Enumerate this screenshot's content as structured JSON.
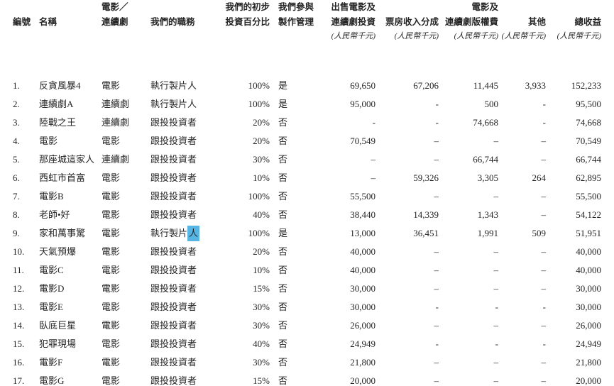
{
  "page": {
    "background_color": "#ffffff",
    "text_color": "#252525",
    "selection_highlight_color": "#56b5e2"
  },
  "table": {
    "unit_label": "(人民幣千元)",
    "columns": [
      {
        "key": "no",
        "lines": [
          "編號"
        ],
        "align": "left",
        "unit": false
      },
      {
        "key": "name",
        "lines": [
          "名稱"
        ],
        "align": "left",
        "unit": false
      },
      {
        "key": "type",
        "lines": [
          "電影／",
          "連續劇"
        ],
        "align": "left",
        "unit": false
      },
      {
        "key": "role",
        "lines": [
          "我們的職務"
        ],
        "align": "left",
        "unit": false
      },
      {
        "key": "pct",
        "lines": [
          "我們的初步",
          "投資百分比"
        ],
        "align": "right",
        "unit": false
      },
      {
        "key": "mgmt",
        "lines": [
          "我們參與",
          "製作管理"
        ],
        "align": "left",
        "unit": false
      },
      {
        "key": "invest",
        "lines": [
          "出售電影及",
          "連續劇投資"
        ],
        "align": "right",
        "unit": true
      },
      {
        "key": "boxoffice",
        "lines": [
          "票房收入分成"
        ],
        "align": "right",
        "unit": true
      },
      {
        "key": "royalty",
        "lines": [
          "電影及",
          "連續劇版權費"
        ],
        "align": "right",
        "unit": true
      },
      {
        "key": "other",
        "lines": [
          "其他"
        ],
        "align": "right",
        "unit": true
      },
      {
        "key": "total",
        "lines": [
          "總收益"
        ],
        "align": "right",
        "unit": true
      }
    ],
    "rows": [
      {
        "no": "1.",
        "name": "反貪風暴4",
        "type": "電影",
        "role": "執行製片人",
        "pct": "100%",
        "mgmt": "是",
        "invest": "69,650",
        "boxoffice": "67,206",
        "royalty": "11,445",
        "other": "3,933",
        "total": "152,233"
      },
      {
        "no": "2.",
        "name": "連續劇A",
        "type": "連續劇",
        "role": "執行製片人",
        "pct": "100%",
        "mgmt": "是",
        "invest": "95,000",
        "boxoffice": "-",
        "royalty": "500",
        "other": "-",
        "total": "95,500"
      },
      {
        "no": "3.",
        "name": "陸戰之王",
        "type": "連續劇",
        "role": "跟投投資者",
        "pct": "20%",
        "mgmt": "否",
        "invest": "-",
        "boxoffice": "-",
        "royalty": "74,668",
        "other": "-",
        "total": "74,668"
      },
      {
        "no": "4.",
        "name": "電影",
        "type": "電影",
        "role": "跟投投資者",
        "pct": "20%",
        "mgmt": "否",
        "invest": "70,549",
        "boxoffice": "–",
        "royalty": "–",
        "other": "–",
        "total": "70,549"
      },
      {
        "no": "5.",
        "name": "那座城這家人",
        "type": "連續劇",
        "role": "跟投投資者",
        "pct": "30%",
        "mgmt": "否",
        "invest": "–",
        "boxoffice": "–",
        "royalty": "66,744",
        "other": "–",
        "total": "66,744"
      },
      {
        "no": "6.",
        "name": "西虹市首富",
        "type": "電影",
        "role": "跟投投資者",
        "pct": "10%",
        "mgmt": "否",
        "invest": "–",
        "boxoffice": "59,326",
        "royalty": "3,305",
        "other": "264",
        "total": "62,895"
      },
      {
        "no": "7.",
        "name": "電影B",
        "type": "電影",
        "role": "跟投投資者",
        "pct": "100%",
        "mgmt": "否",
        "invest": "55,500",
        "boxoffice": "–",
        "royalty": "–",
        "other": "–",
        "total": "55,500"
      },
      {
        "no": "8.",
        "name": "老師•好",
        "type": "電影",
        "role": "跟投投資者",
        "pct": "40%",
        "mgmt": "否",
        "invest": "38,440",
        "boxoffice": "14,339",
        "royalty": "1,343",
        "other": "–",
        "total": "54,122"
      },
      {
        "no": "9.",
        "name": "家和萬事驚",
        "type": "電影",
        "role": "執行製片人",
        "pct": "100%",
        "mgmt": "是",
        "invest": "13,000",
        "boxoffice": "36,451",
        "royalty": "1,991",
        "other": "509",
        "total": "51,951",
        "role_highlight_last_char": true
      },
      {
        "no": "10.",
        "name": "天氣預爆",
        "type": "電影",
        "role": "跟投投資者",
        "pct": "20%",
        "mgmt": "否",
        "invest": "40,000",
        "boxoffice": "–",
        "royalty": "–",
        "other": "–",
        "total": "40,000"
      },
      {
        "no": "11.",
        "name": "電影C",
        "type": "電影",
        "role": "跟投投資者",
        "pct": "10%",
        "mgmt": "否",
        "invest": "40,000",
        "boxoffice": "–",
        "royalty": "–",
        "other": "–",
        "total": "40,000"
      },
      {
        "no": "12.",
        "name": "電影D",
        "type": "電影",
        "role": "跟投投資者",
        "pct": "15%",
        "mgmt": "否",
        "invest": "30,000",
        "boxoffice": "–",
        "royalty": "–",
        "other": "–",
        "total": "30,000"
      },
      {
        "no": "13.",
        "name": "電影E",
        "type": "電影",
        "role": "跟投投資者",
        "pct": "30%",
        "mgmt": "否",
        "invest": "30,000",
        "boxoffice": "-",
        "royalty": "-",
        "other": "-",
        "total": "30,000"
      },
      {
        "no": "14.",
        "name": "臥底巨星",
        "type": "電影",
        "role": "跟投投資者",
        "pct": "30%",
        "mgmt": "否",
        "invest": "26,000",
        "boxoffice": "–",
        "royalty": "–",
        "other": "–",
        "total": "26,000"
      },
      {
        "no": "15.",
        "name": "犯罪現場",
        "type": "電影",
        "role": "跟投投資者",
        "pct": "40%",
        "mgmt": "否",
        "invest": "24,949",
        "boxoffice": "-",
        "royalty": "-",
        "other": "-",
        "total": "24,949"
      },
      {
        "no": "16.",
        "name": "電影F",
        "type": "電影",
        "role": "跟投投資者",
        "pct": "30%",
        "mgmt": "否",
        "invest": "21,800",
        "boxoffice": "–",
        "royalty": "–",
        "other": "–",
        "total": "21,800"
      },
      {
        "no": "17.",
        "name": "電影G",
        "type": "電影",
        "role": "跟投投資者",
        "pct": "15%",
        "mgmt": "否",
        "invest": "20,000",
        "boxoffice": "–",
        "royalty": "–",
        "other": "–",
        "total": "20,000"
      }
    ]
  }
}
